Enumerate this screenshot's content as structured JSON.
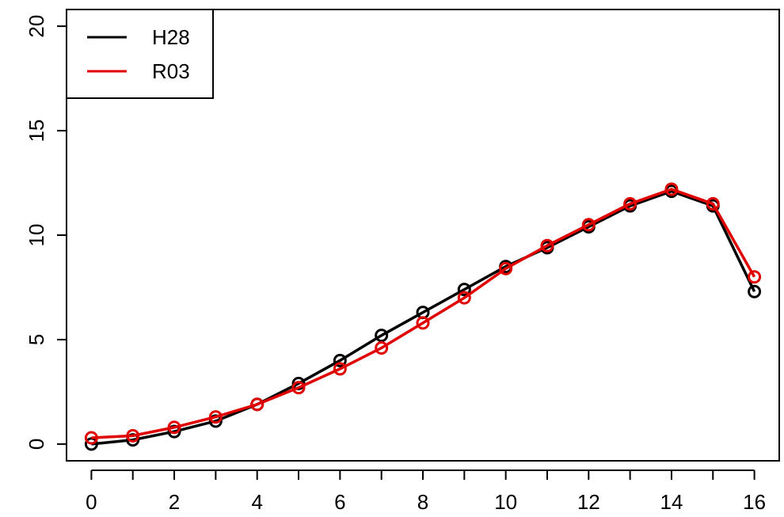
{
  "chart_data": {
    "type": "line",
    "title": "",
    "xlabel": "",
    "ylabel": "",
    "xlim": [
      -0.6,
      16.6
    ],
    "ylim": [
      -0.8,
      20.8
    ],
    "x": [
      0,
      1,
      2,
      3,
      4,
      5,
      6,
      7,
      8,
      9,
      10,
      11,
      12,
      13,
      14,
      15,
      16
    ],
    "x_ticks": [
      0,
      2,
      4,
      6,
      8,
      10,
      12,
      14,
      16
    ],
    "y_ticks": [
      0,
      5,
      10,
      15,
      20
    ],
    "grid": false,
    "legend_position": "top-left",
    "series": [
      {
        "name": "H28",
        "color": "#000000",
        "values": [
          0.0,
          0.2,
          0.6,
          1.1,
          1.9,
          2.9,
          4.0,
          5.2,
          6.3,
          7.4,
          8.5,
          9.4,
          10.4,
          11.4,
          12.1,
          11.4,
          7.3
        ]
      },
      {
        "name": "R03",
        "color": "#e00000",
        "values": [
          0.3,
          0.4,
          0.8,
          1.3,
          1.9,
          2.7,
          3.6,
          4.6,
          5.8,
          7.0,
          8.4,
          9.5,
          10.5,
          11.5,
          12.2,
          11.5,
          8.0
        ]
      }
    ]
  }
}
